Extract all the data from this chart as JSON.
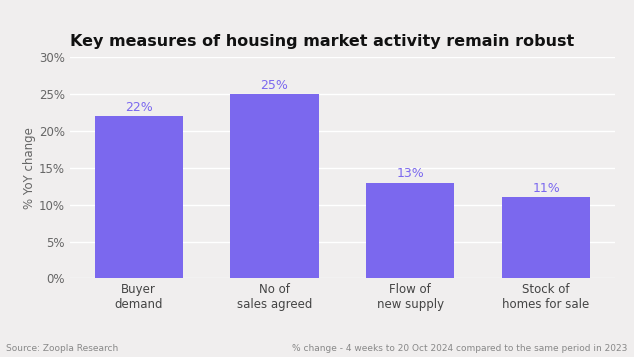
{
  "title": "Key measures of housing market activity remain robust",
  "categories": [
    "Buyer\ndemand",
    "No of\nsales agreed",
    "Flow of\nnew supply",
    "Stock of\nhomes for sale"
  ],
  "values": [
    22,
    25,
    13,
    11
  ],
  "bar_color": "#7B68EE",
  "label_color": "#7B68EE",
  "ylabel": "% YoY change",
  "ylim": [
    0,
    30
  ],
  "yticks": [
    0,
    5,
    10,
    15,
    20,
    25,
    30
  ],
  "background_color": "#f0eeee",
  "source_left": "Source: Zoopla Research",
  "source_right": "% change - 4 weeks to 20 Oct 2024 compared to the same period in 2023",
  "title_fontsize": 11.5,
  "label_fontsize": 9,
  "tick_fontsize": 8.5,
  "footer_fontsize": 6.5
}
